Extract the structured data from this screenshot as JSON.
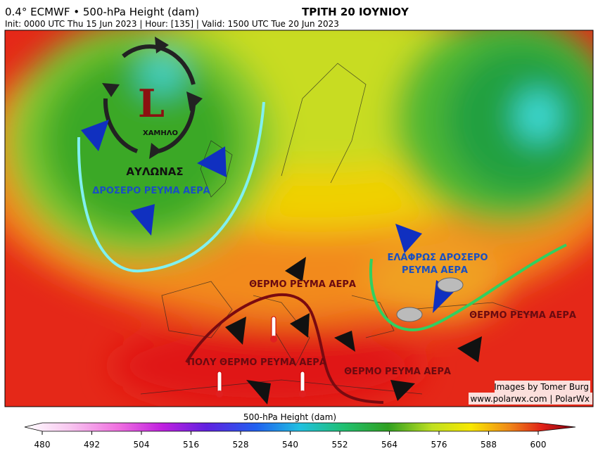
{
  "header": {
    "title": "0.4° ECMWF • 500-hPa Height (dam)",
    "subtitle": "Init: 0000 UTC Thu 15 Jun 2023 | Hour: [135] | Valid: 1500 UTC Tue 20 Jun 2023",
    "day": "ΤΡΙΤΗ 20 ΙΟΥΝΙΟΥ"
  },
  "annotations": {
    "low_letter": "L",
    "low": "ΧΑΜΗΛΟ",
    "trough": "ΑΥΛΩΝΑΣ",
    "cool_flow": "ΔΡΟΣΕΡΟ ΡΕΥΜΑ ΑΕΡΑ",
    "slightly_cool_1": "ΕΛΑΦΡΩΣ ΔΡΟΣΕΡΟ",
    "slightly_cool_2": "ΡΕΥΜΑ ΑΕΡΑ",
    "warm_1": "ΘΕΡΜΟ ΡΕΥΜΑ ΑΕΡΑ",
    "warm_2": "ΘΕΡΜΟ ΡΕΥΜΑ ΑΕΡΑ",
    "very_warm": "ΠΟΛΥ ΘΕΡΜΟ ΡΕΥΜΑ ΑΕΡΑ",
    "warm_3": "ΘΕΡΜΟ ΡΕΥΜΑ ΑΕΡΑ"
  },
  "credits": {
    "images": "Images by Tomer Burg",
    "site": "www.polarwx.com | PolarWx"
  },
  "colorbar": {
    "label": "500-hPa Height (dam)",
    "range": [
      480,
      600
    ],
    "ticks": [
      480,
      492,
      504,
      516,
      528,
      540,
      552,
      564,
      576,
      588,
      600
    ]
  }
}
